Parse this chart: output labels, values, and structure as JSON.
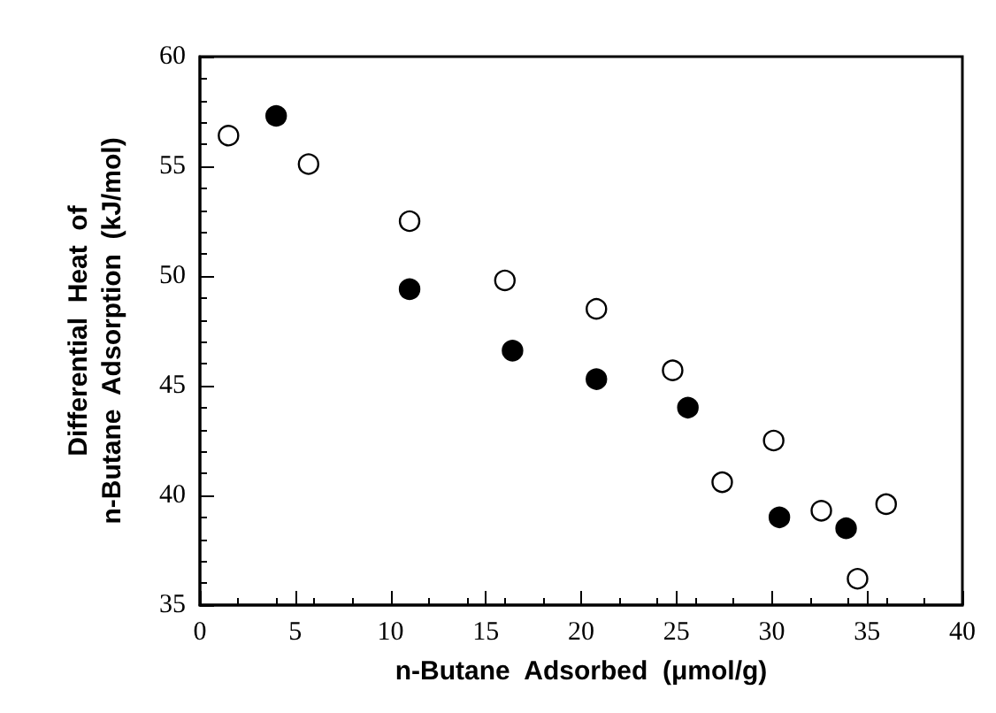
{
  "chart_data": {
    "type": "scatter",
    "xlabel": "n-Butane  Adsorbed  (μmol/g)",
    "ylabel": "Differential  Heat  of\nn-Butane  Adsorption  (kJ/mol)",
    "xlim": [
      0,
      40
    ],
    "xticks": [
      0,
      5,
      10,
      15,
      20,
      25,
      30,
      35,
      40
    ],
    "ylim": [
      35,
      60
    ],
    "yticks": [
      35,
      40,
      45,
      50,
      55,
      60
    ],
    "grid": false,
    "marker": "circle",
    "series": [
      {
        "color": "#ffffff",
        "x": [
          1.5,
          5.7,
          11,
          16,
          20.8,
          24.8,
          27.4,
          30.1,
          32.6,
          34.5,
          36
        ],
        "values": [
          56.4,
          55.1,
          52.5,
          49.8,
          48.5,
          45.7,
          40.6,
          42.5,
          39.3,
          36.2,
          39.6
        ]
      },
      {
        "color": "#000000",
        "x": [
          4,
          11,
          16.4,
          20.8,
          25.6,
          30.4,
          33.9
        ],
        "values": [
          57.3,
          49.4,
          46.6,
          45.3,
          44,
          39,
          38.5
        ]
      }
    ]
  }
}
